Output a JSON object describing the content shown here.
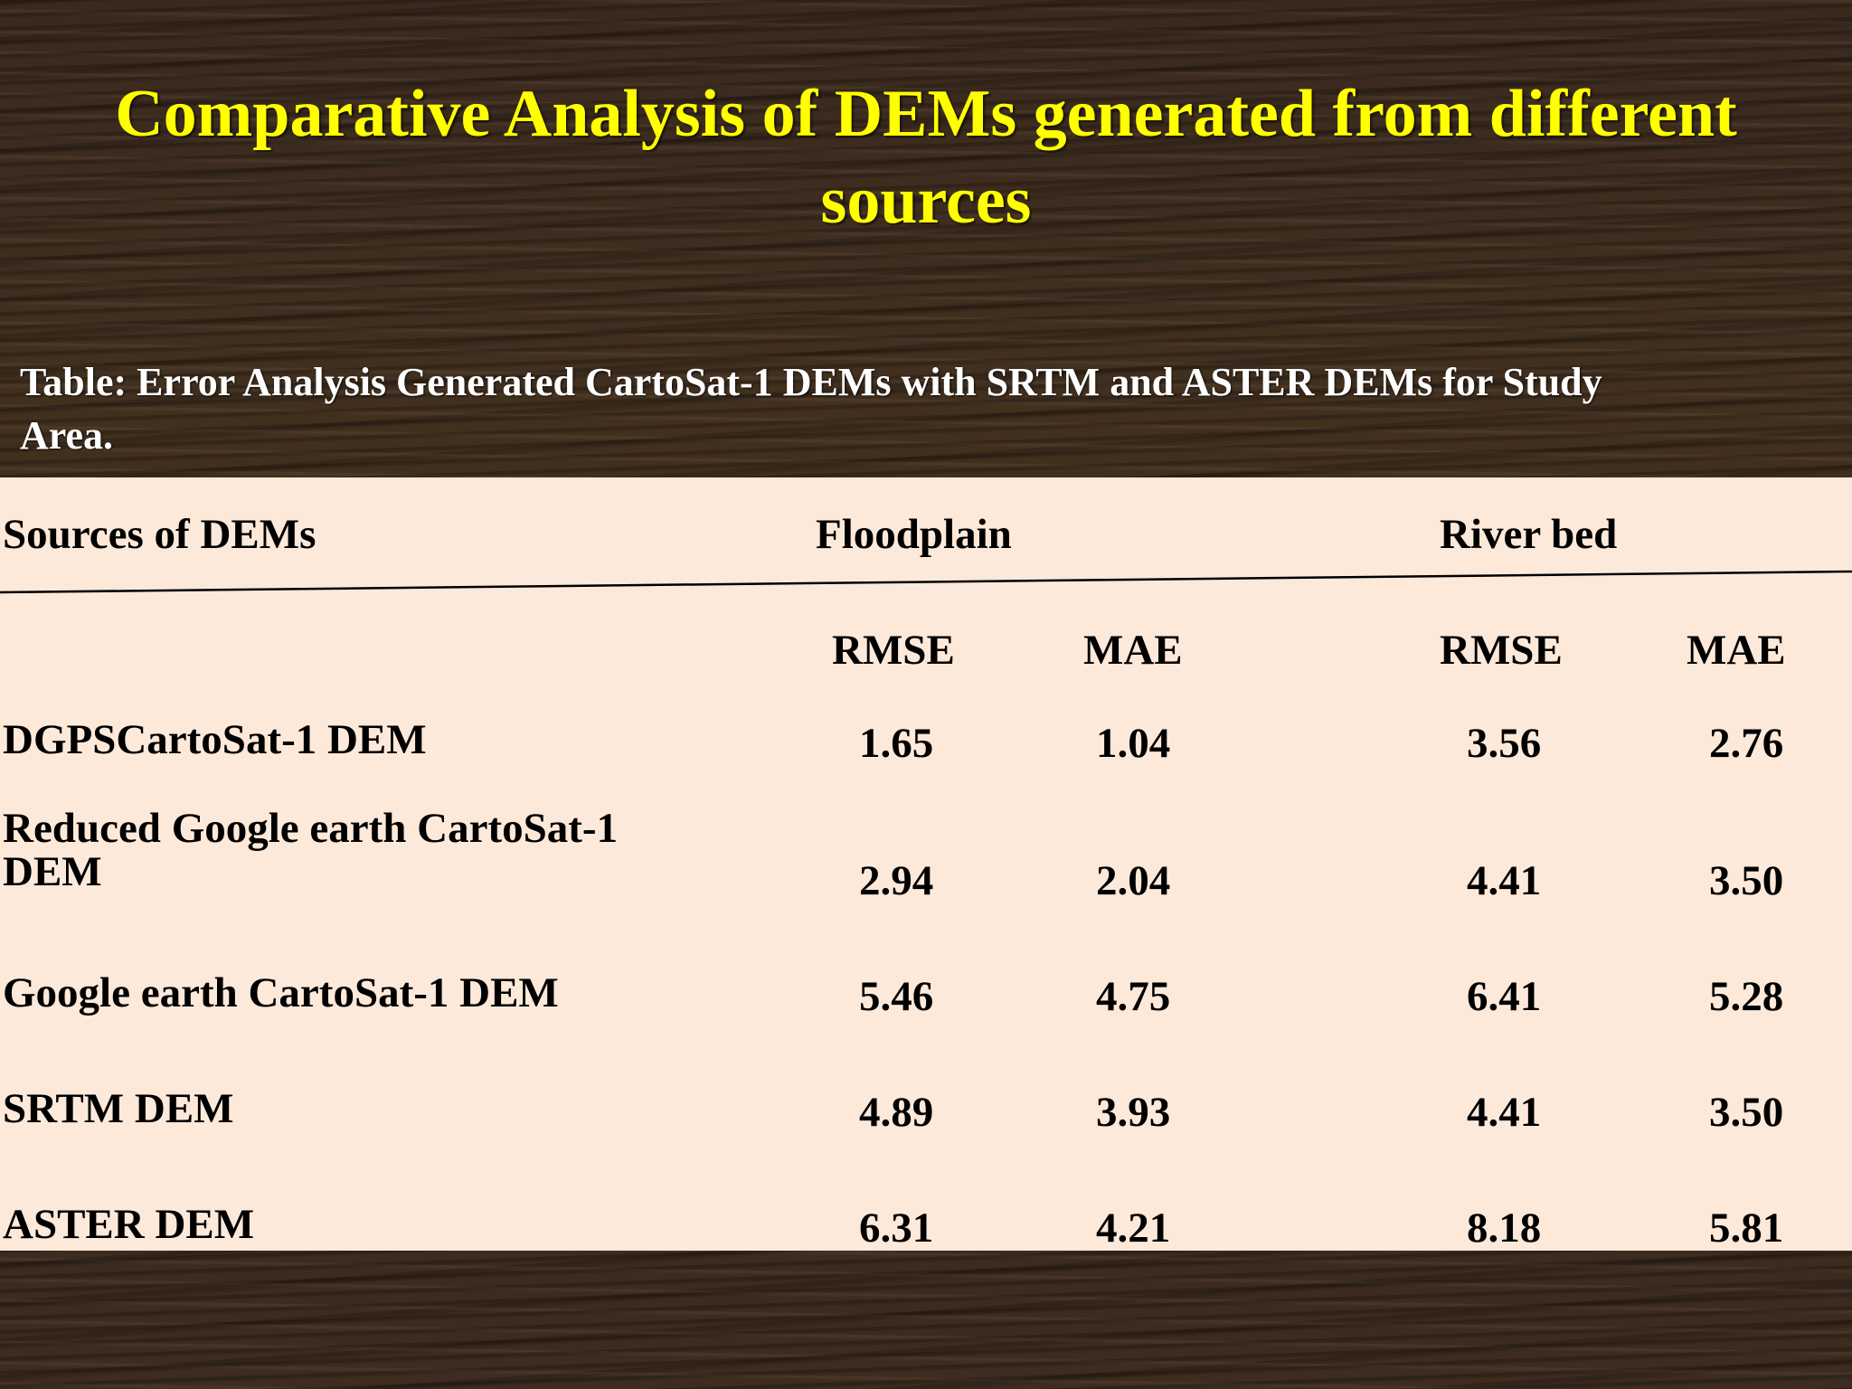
{
  "slide": {
    "title": "Comparative  Analysis of DEMs generated from different sources",
    "table_caption": "Table: Error Analysis Generated CartoSat-1 DEMs with SRTM and ASTER DEMs for Study\nArea."
  },
  "table": {
    "header": {
      "sources": "Sources of DEMs",
      "floodplain": "Floodplain",
      "river_bed": "River bed"
    },
    "subheader": {
      "floodplain_rmse": "RMSE",
      "floodplain_mae": "MAE",
      "river_bed_rmse": "RMSE",
      "river_bed_mae": "MAE"
    },
    "rows": [
      {
        "source": "DGPSCartoSat-1  DEM",
        "fp_rmse": "1.65",
        "fp_mae": "1.04",
        "rb_rmse": "3.56",
        "rb_mae": "2.76"
      },
      {
        "source": "Reduced Google earth CartoSat-1\nDEM",
        "fp_rmse": "2.94",
        "fp_mae": "2.04",
        "rb_rmse": "4.41",
        "rb_mae": "3.50"
      },
      {
        "source": "Google earth CartoSat-1 DEM",
        "fp_rmse": "5.46",
        "fp_mae": "4.75",
        "rb_rmse": "6.41",
        "rb_mae": "5.28"
      },
      {
        "source": "SRTM DEM",
        "fp_rmse": "4.89",
        "fp_mae": "3.93",
        "rb_rmse": "4.41",
        "rb_mae": "3.50"
      },
      {
        "source": "ASTER DEM",
        "fp_rmse": "6.31",
        "fp_mae": "4.21",
        "rb_rmse": "8.18",
        "rb_mae": "5.81"
      }
    ]
  },
  "colors": {
    "title": "#ffff00",
    "caption": "#ffffff",
    "table_background": "#fde9da",
    "table_text": "#000000"
  }
}
